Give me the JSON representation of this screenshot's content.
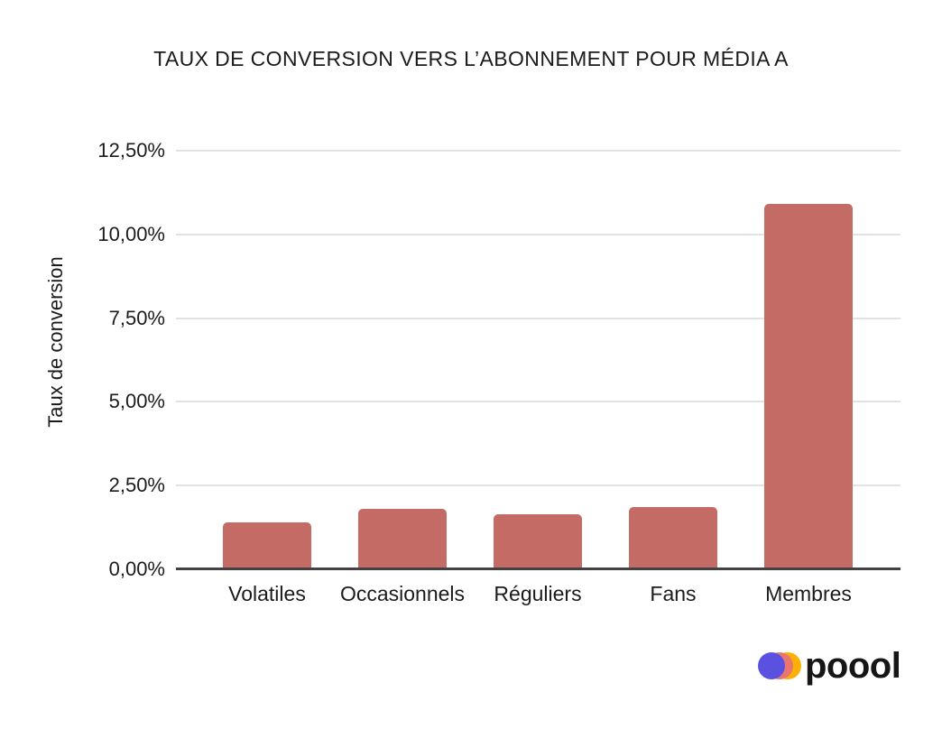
{
  "chart_data": {
    "type": "bar",
    "title": "TAUX DE CONVERSION VERS L’ABONNEMENT POUR MÉDIA A",
    "categories": [
      "Volatiles",
      "Occasionnels",
      "Réguliers",
      "Fans",
      "Membres"
    ],
    "values": [
      1.4,
      1.8,
      1.65,
      1.85,
      10.9
    ],
    "xlabel": "",
    "ylabel": "Taux de conversion",
    "ylim": [
      0,
      12.5
    ],
    "yticks": [
      0,
      2.5,
      5,
      7.5,
      10,
      12.5
    ],
    "ytick_labels": [
      "0,00%",
      "2,50%",
      "5,00%",
      "7,50%",
      "10,00%",
      "12,50%"
    ],
    "grid": true,
    "legend": false,
    "bar_color": "#C56B66",
    "gridline_color": "#E2E2E2",
    "axis_color": "#424242",
    "text_color": "#1B1B1B"
  },
  "logo": {
    "text": "poool",
    "circle_colors": {
      "yellow": "#FCB005",
      "pink": "#E8766F",
      "blue": "#5B51E1"
    }
  }
}
